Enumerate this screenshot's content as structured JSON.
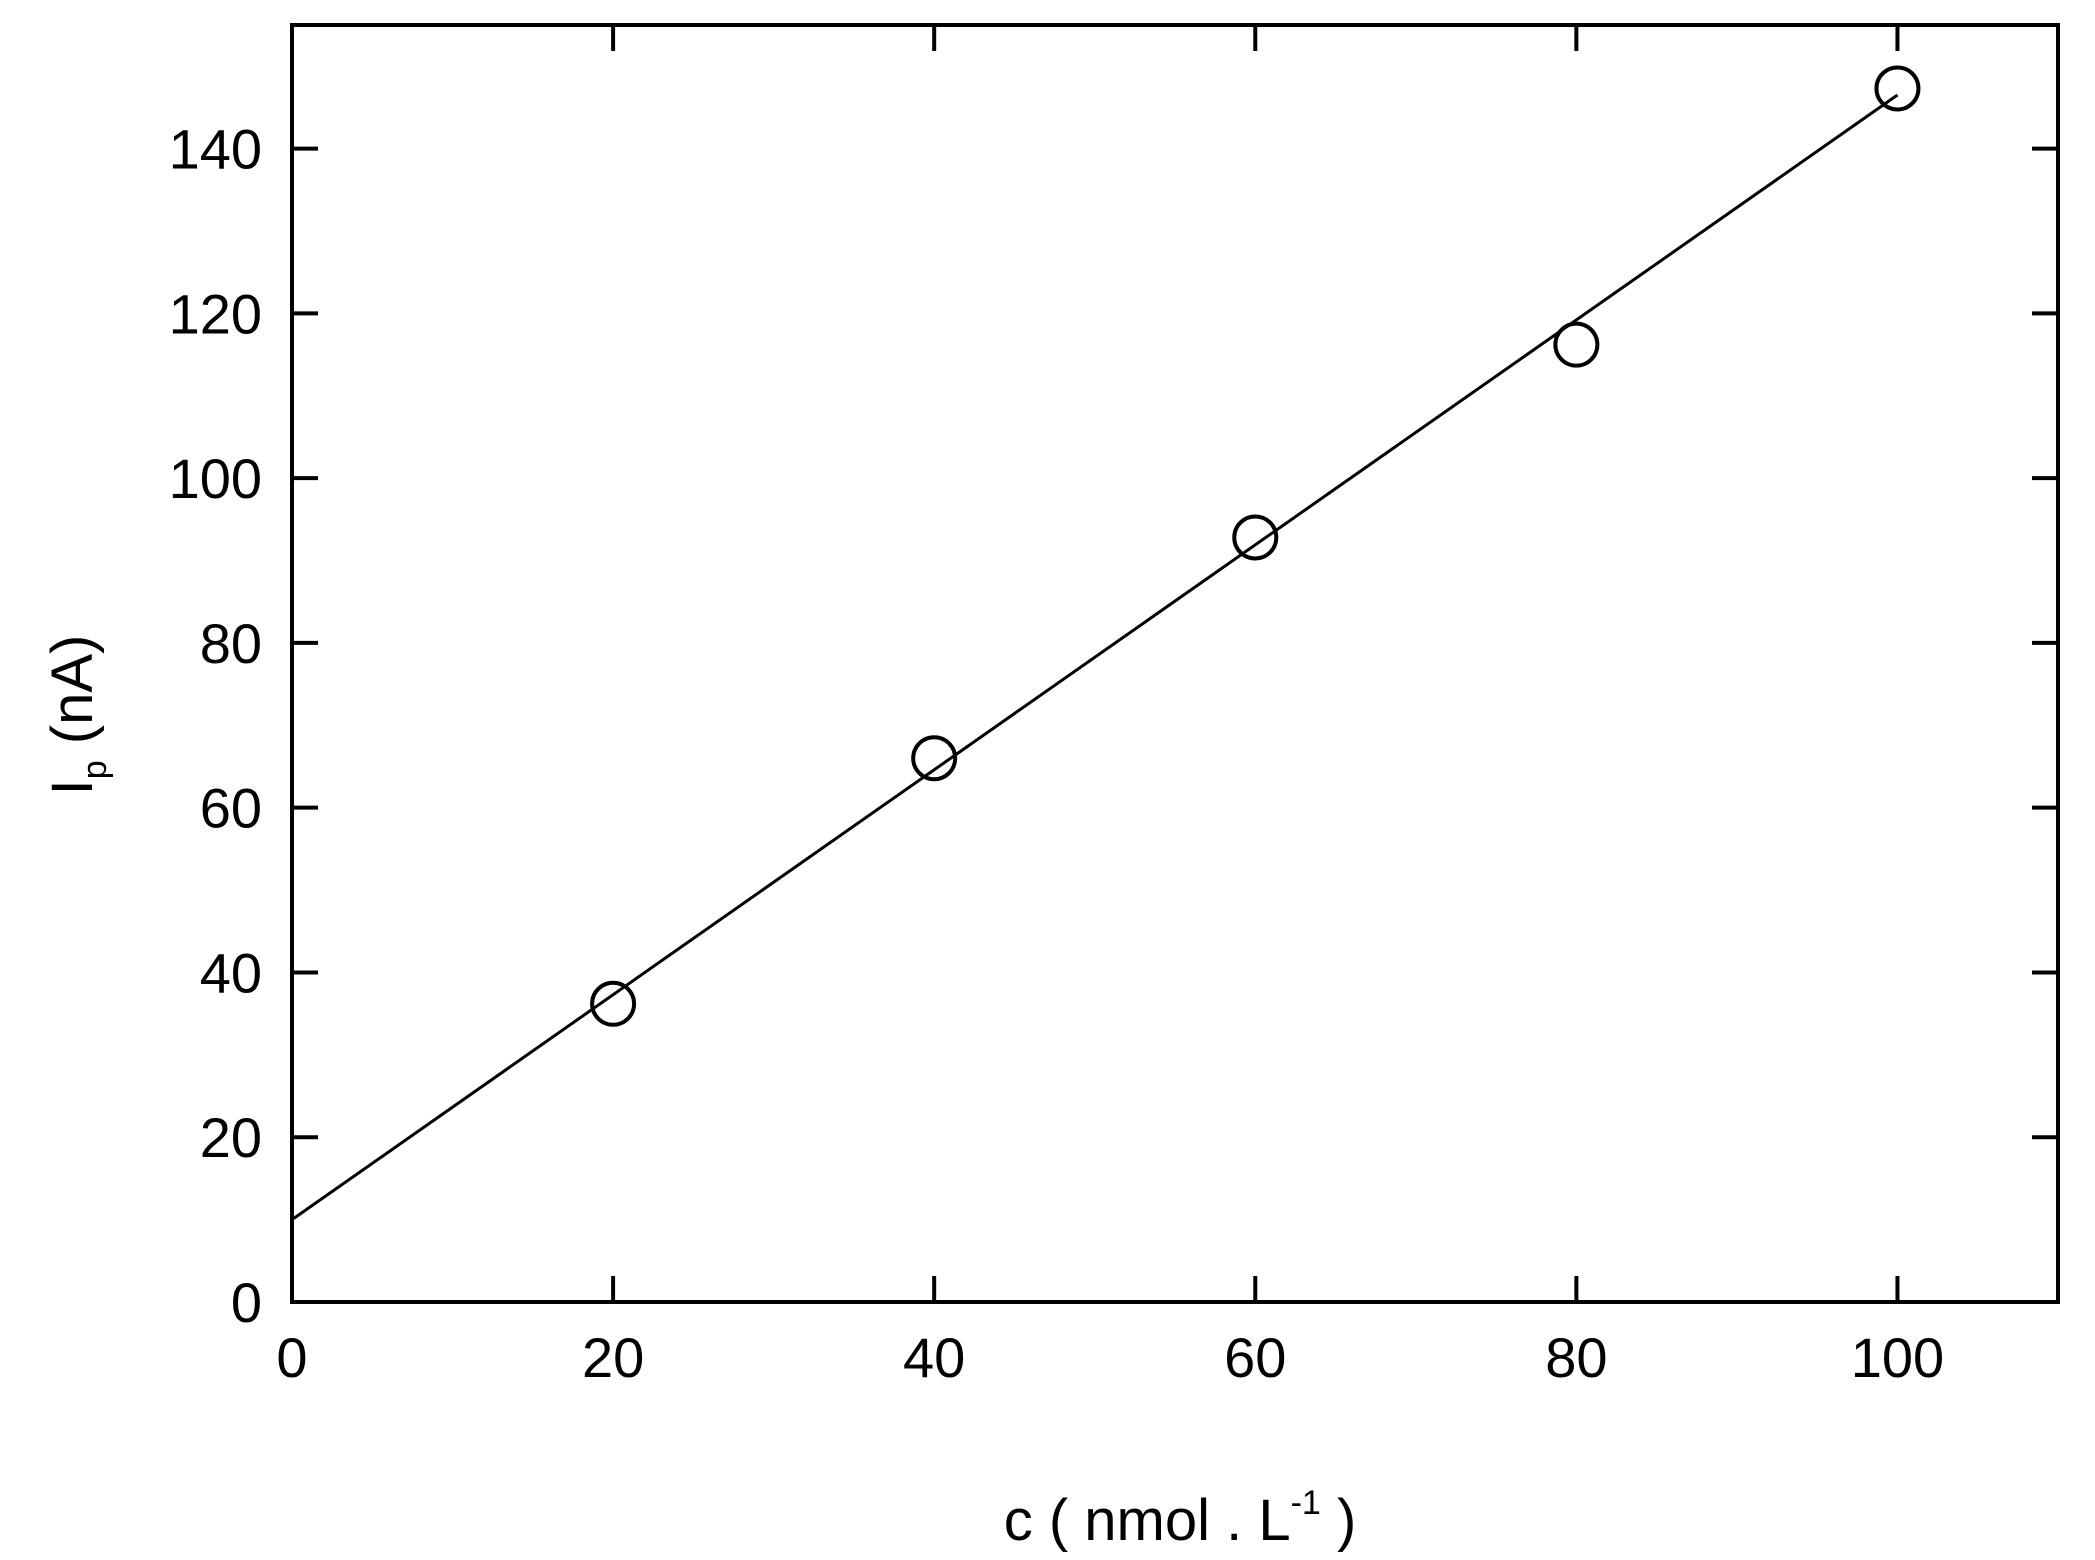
{
  "chart_data": {
    "type": "scatter",
    "title": "",
    "xlabel": {
      "base": "c ( nmol . L",
      "superscript": "-1",
      "tail": " )"
    },
    "ylabel": {
      "base": "I",
      "subscript": "p",
      "tail": " (nA)"
    },
    "xlim": [
      0,
      110
    ],
    "ylim": [
      0,
      155
    ],
    "xticks": [
      0,
      20,
      40,
      60,
      80,
      100
    ],
    "yticks": [
      0,
      20,
      40,
      60,
      80,
      100,
      120,
      140
    ],
    "grid": false,
    "legend": "none",
    "series": [
      {
        "marker": "open-circle",
        "color": "#000000",
        "x": [
          20,
          40,
          60,
          80,
          100
        ],
        "y": [
          36.2,
          66.0,
          92.8,
          116.2,
          147.3
        ]
      }
    ],
    "fit_line": {
      "color": "#000000",
      "x": [
        0,
        100
      ],
      "y": [
        10.0,
        146.5
      ]
    }
  }
}
